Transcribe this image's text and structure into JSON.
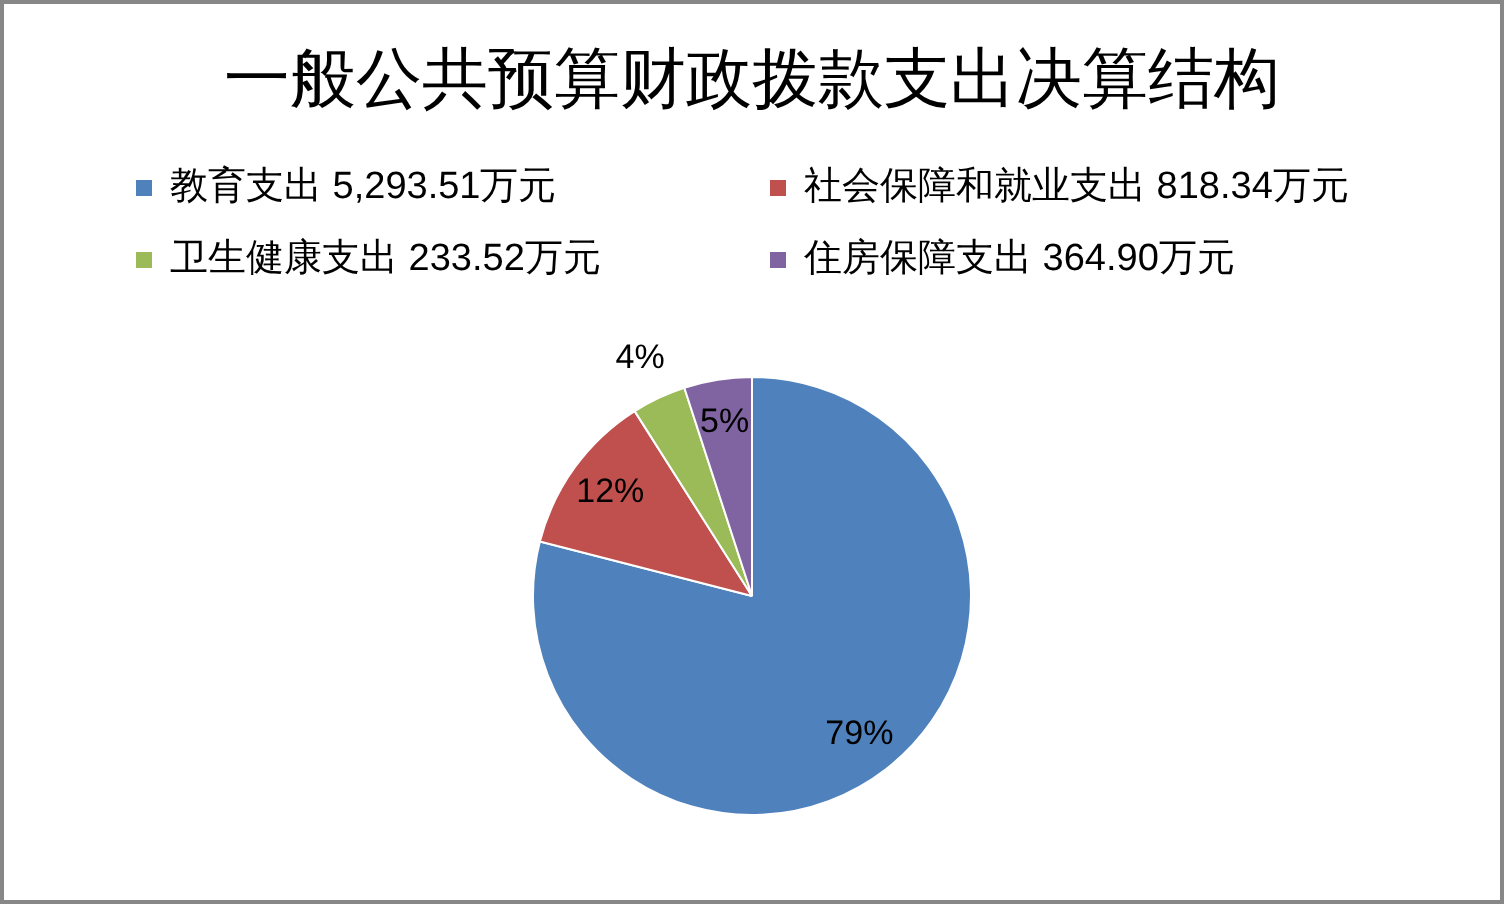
{
  "chart_data": {
    "type": "pie",
    "title": "一般公共预算财政拨款支出决算结构",
    "categories": [
      "教育支出 5,293.51万元",
      "社会保障和就业支出 818.34万元",
      "卫生健康支出 233.52万元",
      "住房保障支出 364.90万元"
    ],
    "values": [
      79,
      12,
      4,
      5
    ],
    "colors": [
      "#4f81bd",
      "#c0504d",
      "#9bbb59",
      "#8064a2"
    ],
    "value_labels": [
      "79%",
      "12%",
      "4%",
      "5%"
    ],
    "legend": "top"
  }
}
